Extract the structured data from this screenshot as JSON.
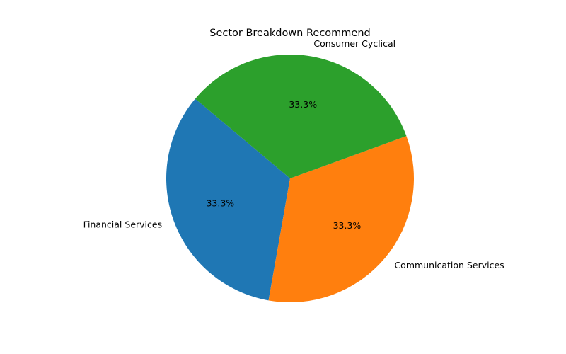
{
  "chart_data": {
    "type": "pie",
    "title": "Sector Breakdown Recommend",
    "slices": [
      {
        "label": "Financial Services",
        "value": 33.3,
        "pct_label": "33.3%",
        "color": "#1f77b4"
      },
      {
        "label": "Communication Services",
        "value": 33.3,
        "pct_label": "33.3%",
        "color": "#ff7f0e"
      },
      {
        "label": "Consumer Cyclical",
        "value": 33.3,
        "pct_label": "33.3%",
        "color": "#2ca02c"
      }
    ],
    "start_angle_deg": 140,
    "direction": "counterclockwise",
    "legend": "none"
  }
}
